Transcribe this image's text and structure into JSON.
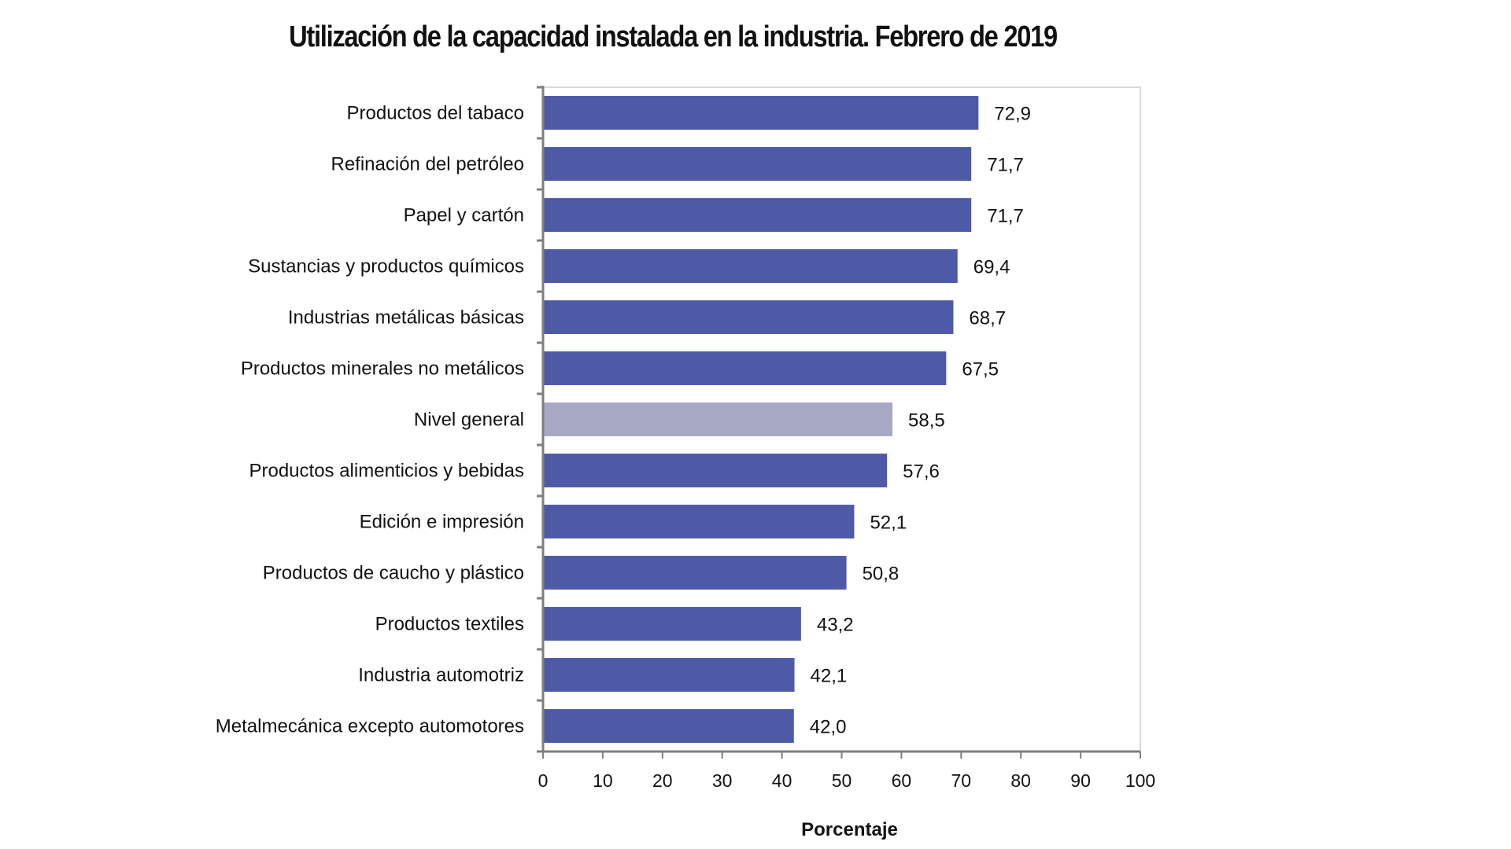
{
  "chart_data": {
    "type": "bar",
    "orientation": "horizontal",
    "title": "Utilización de la capacidad instalada en la industria. Febrero de 2019",
    "xlabel": "Porcentaje",
    "ylabel": "",
    "xlim": [
      0,
      100
    ],
    "xticks": [
      0,
      10,
      20,
      30,
      40,
      50,
      60,
      70,
      80,
      90,
      100
    ],
    "grid": false,
    "legend": "none",
    "categories": [
      "Productos del tabaco",
      "Refinación del petróleo",
      "Papel y cartón",
      "Sustancias y productos químicos",
      "Industrias metálicas básicas",
      "Productos minerales no metálicos",
      "Nivel general",
      "Productos alimenticios y bebidas",
      "Edición e impresión",
      "Productos de caucho y plástico",
      "Productos textiles",
      "Industria automotriz",
      "Metalmecánica excepto automotores"
    ],
    "values": [
      72.9,
      71.7,
      71.7,
      69.4,
      68.7,
      67.5,
      58.5,
      57.6,
      52.1,
      50.8,
      43.2,
      42.1,
      42.0
    ],
    "value_labels": [
      "72,9",
      "71,7",
      "71,7",
      "69,4",
      "68,7",
      "67,5",
      "58,5",
      "57,6",
      "52,1",
      "50,8",
      "43,2",
      "42,1",
      "42,0"
    ],
    "highlight_category": "Nivel general",
    "colors": {
      "bar": "#4e5aa6",
      "highlight": "#a7a8c4",
      "axis": "#7f7f7f",
      "frame": "#d9d9d9"
    }
  }
}
